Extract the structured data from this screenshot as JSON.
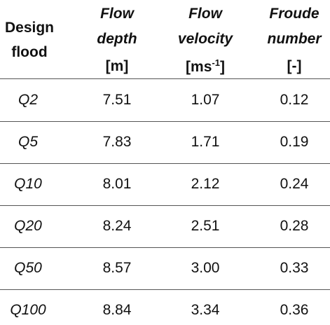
{
  "table": {
    "header": [
      {
        "title": [
          "Design",
          "flood"
        ]
      },
      {
        "title": [
          "Flow",
          "depth"
        ],
        "unit": "[m]"
      },
      {
        "title": [
          "Flow",
          "velocity"
        ],
        "unit": {
          "pre": "[ms",
          "sup": "-1",
          "post": "]"
        }
      },
      {
        "title": [
          "Froude",
          "number"
        ],
        "unit": "[-]"
      }
    ],
    "rows": [
      [
        "Q2",
        "7.51",
        "1.07",
        "0.12"
      ],
      [
        "Q5",
        "7.83",
        "1.71",
        "0.19"
      ],
      [
        "Q10",
        "8.01",
        "2.12",
        "0.24"
      ],
      [
        "Q20",
        "8.24",
        "2.51",
        "0.28"
      ],
      [
        "Q50",
        "8.57",
        "3.00",
        "0.33"
      ],
      [
        "Q100",
        "8.84",
        "3.34",
        "0.36"
      ]
    ]
  }
}
